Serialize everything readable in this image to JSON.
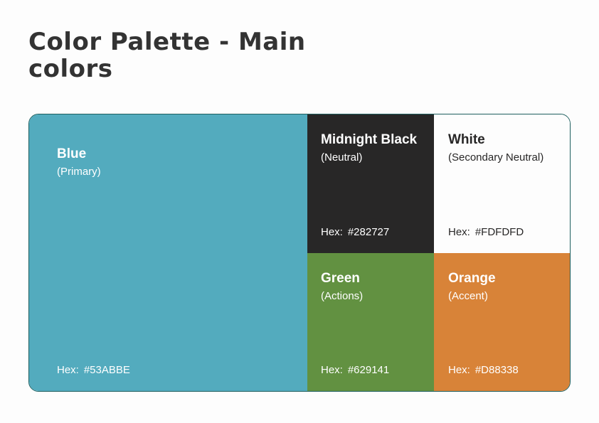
{
  "title": "Color Palette - Main colors",
  "colors": [
    {
      "name": "Blue",
      "role": "(Primary)",
      "hex_label": "Hex:",
      "hex": "#53ABBE",
      "background": "#53ABBE",
      "text_color": "#FFFFFF"
    },
    {
      "name": "Midnight Black",
      "role": "(Neutral)",
      "hex_label": "Hex:",
      "hex": "#282727",
      "background": "#282727",
      "text_color": "#FFFFFF"
    },
    {
      "name": "White",
      "role": "(Secondary Neutral)",
      "hex_label": "Hex:",
      "hex": "#FDFDFD",
      "background": "#FDFDFD",
      "text_color": "#282727"
    },
    {
      "name": "Green",
      "role": "(Actions)",
      "hex_label": "Hex:",
      "hex": "#629141",
      "background": "#629141",
      "text_color": "#FFFFFF"
    },
    {
      "name": "Orange",
      "role": "(Accent)",
      "hex_label": "Hex:",
      "hex": "#D88338",
      "background": "#D88338",
      "text_color": "#FFFFFF"
    }
  ]
}
